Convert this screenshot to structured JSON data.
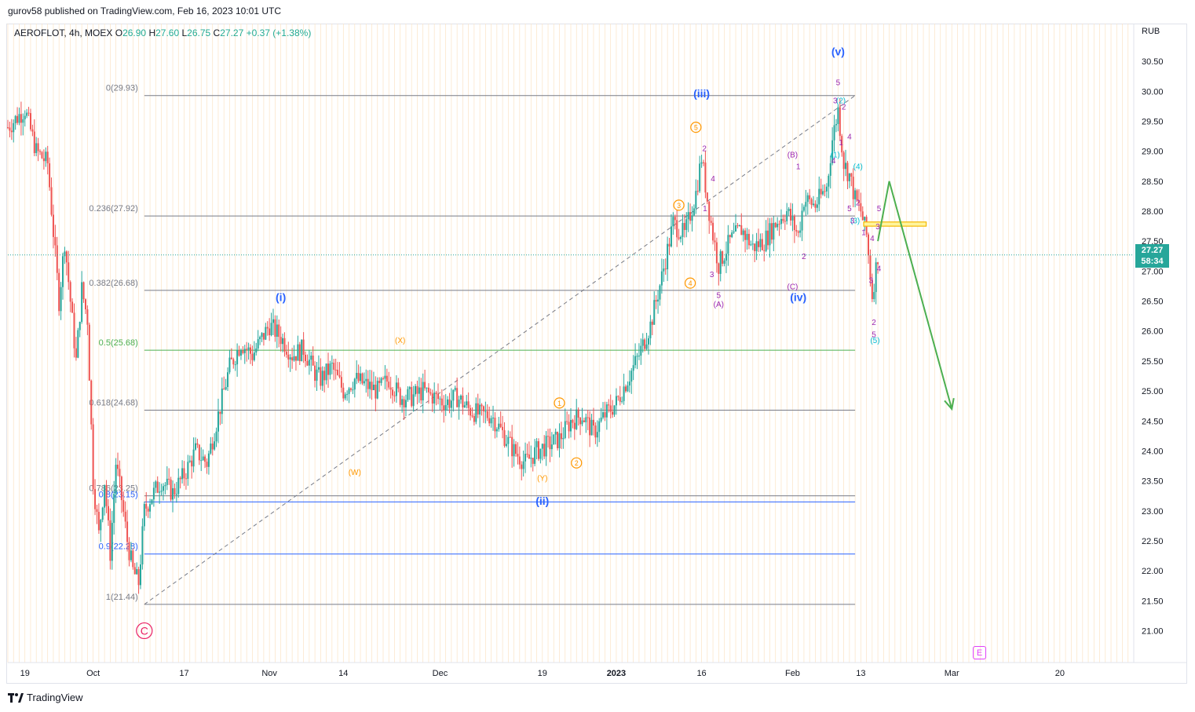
{
  "publish_line": "gurov58 published on TradingView.com, Feb 16, 2023 10:01 UTC",
  "header": {
    "symbol": "AEROFLOT, 4h, MOEX",
    "o_label": "O",
    "o_value": "26.90",
    "h_label": "H",
    "h_value": "27.60",
    "l_label": "L",
    "l_value": "26.75",
    "c_label": "C",
    "c_value": "27.27",
    "change": "+0.37 (+1.38%)"
  },
  "price_axis": {
    "currency": "RUB",
    "last_price": "27.27",
    "countdown": "58:34"
  },
  "footer": {
    "brand": "TradingView"
  },
  "events_badge": "E",
  "colors": {
    "up": "#26a69a",
    "down": "#ef5350",
    "fib_gray": "#787b86",
    "fib_green": "#4caf50",
    "fib_blue": "#2962ff",
    "wave_blue": "#2962ff",
    "wave_orange": "#ff9800",
    "wave_purple": "#9c27b0",
    "wave_cyan": "#00bcd4",
    "arrow_green": "#4caf50",
    "zone_gold": "#f5b800"
  },
  "chart_data": {
    "type": "candlestick",
    "symbol": "AEROFLOT",
    "interval": "4h",
    "exchange": "MOEX",
    "y_unit": "RUB",
    "ylim": [
      20.6,
      31.0
    ],
    "y_ticks": [
      "21.00",
      "21.50",
      "22.00",
      "22.50",
      "23.00",
      "23.50",
      "24.00",
      "24.50",
      "25.00",
      "25.50",
      "26.00",
      "26.50",
      "27.00",
      "27.50",
      "28.00",
      "28.50",
      "29.00",
      "29.50",
      "30.00",
      "30.50"
    ],
    "x_ticks": [
      "19",
      "Oct",
      "17",
      "Nov",
      "14",
      "Dec",
      "19",
      "2023",
      "16",
      "Feb",
      "13",
      "Mar",
      "20"
    ],
    "x_tick_days": [
      -12,
      0,
      16,
      31,
      44,
      61,
      79,
      92,
      107,
      123,
      135,
      151,
      170
    ],
    "xlim_days": [
      -15,
      183
    ],
    "last_candle_day": 138,
    "close_path": [
      [
        -15,
        29.4
      ],
      [
        -12,
        29.7
      ],
      [
        -10,
        29.0
      ],
      [
        -8,
        28.8
      ],
      [
        -6,
        26.5
      ],
      [
        -5,
        27.5
      ],
      [
        -3,
        25.5
      ],
      [
        -2,
        26.7
      ],
      [
        -1,
        26.2
      ],
      [
        0,
        23.5
      ],
      [
        1,
        22.6
      ],
      [
        2,
        23.5
      ],
      [
        3,
        22.3
      ],
      [
        4,
        23.8
      ],
      [
        5,
        23.2
      ],
      [
        6,
        22.5
      ],
      [
        7,
        22.0
      ],
      [
        8,
        21.8
      ],
      [
        9,
        23.0
      ],
      [
        10,
        23.2
      ],
      [
        12,
        23.5
      ],
      [
        14,
        23.3
      ],
      [
        16,
        23.6
      ],
      [
        18,
        24.0
      ],
      [
        20,
        23.8
      ],
      [
        22,
        24.6
      ],
      [
        24,
        25.4
      ],
      [
        26,
        25.8
      ],
      [
        28,
        25.6
      ],
      [
        31,
        26.1
      ],
      [
        33,
        25.9
      ],
      [
        35,
        25.6
      ],
      [
        37,
        25.7
      ],
      [
        39,
        25.3
      ],
      [
        40,
        25.2
      ],
      [
        42,
        25.4
      ],
      [
        44,
        25.0
      ],
      [
        46,
        25.2
      ],
      [
        48,
        25.1
      ],
      [
        50,
        25.0
      ],
      [
        52,
        25.2
      ],
      [
        54,
        24.9
      ],
      [
        56,
        24.9
      ],
      [
        58,
        25.0
      ],
      [
        60,
        24.9
      ],
      [
        62,
        24.8
      ],
      [
        64,
        24.9
      ],
      [
        66,
        24.7
      ],
      [
        68,
        24.6
      ],
      [
        70,
        24.6
      ],
      [
        72,
        24.3
      ],
      [
        74,
        24.0
      ],
      [
        76,
        23.8
      ],
      [
        78,
        24.0
      ],
      [
        80,
        24.1
      ],
      [
        82,
        24.2
      ],
      [
        84,
        24.5
      ],
      [
        86,
        24.6
      ],
      [
        88,
        24.3
      ],
      [
        90,
        24.6
      ],
      [
        92,
        24.8
      ],
      [
        94,
        25.2
      ],
      [
        96,
        25.6
      ],
      [
        98,
        26.1
      ],
      [
        100,
        26.9
      ],
      [
        102,
        27.8
      ],
      [
        104,
        27.6
      ],
      [
        106,
        28.3
      ],
      [
        107,
        28.9
      ],
      [
        108,
        28.2
      ],
      [
        109,
        27.6
      ],
      [
        110,
        27.1
      ],
      [
        112,
        27.5
      ],
      [
        114,
        27.7
      ],
      [
        116,
        27.4
      ],
      [
        118,
        27.5
      ],
      [
        120,
        27.8
      ],
      [
        122,
        28.0
      ],
      [
        124,
        27.6
      ],
      [
        125,
        28.2
      ],
      [
        127,
        28.1
      ],
      [
        129,
        28.4
      ],
      [
        130,
        29.2
      ],
      [
        131,
        29.7
      ],
      [
        132,
        28.8
      ],
      [
        133,
        28.6
      ],
      [
        134,
        28.2
      ],
      [
        135,
        28.0
      ],
      [
        136,
        27.6
      ],
      [
        137,
        26.6
      ],
      [
        138,
        27.27
      ]
    ],
    "fib_levels": [
      {
        "ratio": "0",
        "price": 29.93,
        "label": "0(29.93)",
        "color": "fib_gray"
      },
      {
        "ratio": "0.236",
        "price": 27.92,
        "label": "0.236(27.92)",
        "color": "fib_gray"
      },
      {
        "ratio": "0.382",
        "price": 26.68,
        "label": "0.382(26.68)",
        "color": "fib_gray"
      },
      {
        "ratio": "0.5",
        "price": 25.68,
        "label": "0.5(25.68)",
        "color": "fib_green"
      },
      {
        "ratio": "0.618",
        "price": 24.68,
        "label": "0.618(24.68)",
        "color": "fib_gray"
      },
      {
        "ratio": "0.786",
        "price": 23.25,
        "label": "0.786(23.25)",
        "color": "fib_gray"
      },
      {
        "ratio": "0.8",
        "price": 23.15,
        "label": "0.8(23.15)",
        "color": "fib_blue"
      },
      {
        "ratio": "0.9",
        "price": 22.28,
        "label": "0.9(22.28)",
        "color": "fib_blue"
      },
      {
        "ratio": "1",
        "price": 21.44,
        "label": "1(21.44)",
        "color": "fib_gray"
      }
    ],
    "fib_x_range_days": [
      9,
      134
    ],
    "trend_line": {
      "from": [
        9,
        21.44
      ],
      "to": [
        134,
        29.93
      ]
    },
    "target_zone": {
      "x_days": [
        135.5,
        146.5
      ],
      "price_range": [
        27.75,
        27.82
      ]
    },
    "projection_arrow": [
      [
        138,
        27.5
      ],
      [
        140,
        28.5
      ],
      [
        151,
        24.7
      ]
    ],
    "wave_labels": [
      {
        "text": "C",
        "day": 9,
        "price": 21.0,
        "color": "#e91e63",
        "circled": true
      },
      {
        "text": "(i)",
        "day": 33,
        "price": 26.5,
        "color": "wave_blue"
      },
      {
        "text": "(W)",
        "day": 46,
        "price": 23.6,
        "color": "wave_orange"
      },
      {
        "text": "(X)",
        "day": 54,
        "price": 25.8,
        "color": "wave_orange"
      },
      {
        "text": "(Y)",
        "day": 79,
        "price": 23.5,
        "color": "wave_orange"
      },
      {
        "text": "(ii)",
        "day": 79,
        "price": 23.1,
        "color": "wave_blue"
      },
      {
        "text": "1",
        "day": 82,
        "price": 24.8,
        "color": "wave_orange",
        "circled": true
      },
      {
        "text": "2",
        "day": 85,
        "price": 23.8,
        "color": "wave_orange",
        "circled": true
      },
      {
        "text": "3",
        "day": 103,
        "price": 28.1,
        "color": "wave_orange",
        "circled": true
      },
      {
        "text": "4",
        "day": 105,
        "price": 26.8,
        "color": "wave_orange",
        "circled": true
      },
      {
        "text": "5",
        "day": 106,
        "price": 29.4,
        "color": "wave_orange",
        "circled": true
      },
      {
        "text": "(iii)",
        "day": 107,
        "price": 29.9,
        "color": "wave_blue"
      },
      {
        "text": "(A)",
        "day": 110,
        "price": 26.4,
        "color": "wave_purple"
      },
      {
        "text": "(B)",
        "day": 123,
        "price": 28.9,
        "color": "wave_purple"
      },
      {
        "text": "(C)",
        "day": 123,
        "price": 26.7,
        "color": "wave_purple"
      },
      {
        "text": "(iv)",
        "day": 124,
        "price": 26.5,
        "color": "wave_blue"
      },
      {
        "text": "(v)",
        "day": 131,
        "price": 30.6,
        "color": "wave_blue"
      },
      {
        "text": "(1)",
        "day": 130.5,
        "price": 28.9,
        "color": "wave_cyan"
      },
      {
        "text": "(2)",
        "day": 131.5,
        "price": 29.8,
        "color": "wave_cyan"
      },
      {
        "text": "(3)",
        "day": 134,
        "price": 27.8,
        "color": "wave_cyan"
      },
      {
        "text": "(4)",
        "day": 134.5,
        "price": 28.7,
        "color": "wave_cyan"
      },
      {
        "text": "(5)",
        "day": 137.5,
        "price": 25.8,
        "color": "wave_cyan"
      },
      {
        "text": "5",
        "day": 131,
        "price": 30.1,
        "color": "wave_purple"
      },
      {
        "text": "3",
        "day": 130.5,
        "price": 29.8,
        "color": "wave_purple"
      },
      {
        "text": "2",
        "day": 132,
        "price": 29.7,
        "color": "wave_purple"
      },
      {
        "text": "1",
        "day": 131.5,
        "price": 29.1,
        "color": "wave_purple"
      },
      {
        "text": "4",
        "day": 130.2,
        "price": 28.8,
        "color": "wave_purple"
      },
      {
        "text": "4",
        "day": 133,
        "price": 29.2,
        "color": "wave_purple"
      },
      {
        "text": "5",
        "day": 133,
        "price": 28.0,
        "color": "wave_purple"
      },
      {
        "text": "2",
        "day": 134.5,
        "price": 28.1,
        "color": "wave_purple"
      },
      {
        "text": "3",
        "day": 133.5,
        "price": 27.8,
        "color": "wave_purple"
      },
      {
        "text": "1",
        "day": 135.5,
        "price": 27.6,
        "color": "wave_purple"
      },
      {
        "text": "4",
        "day": 137,
        "price": 27.5,
        "color": "wave_purple"
      },
      {
        "text": "3",
        "day": 136.8,
        "price": 26.8,
        "color": "wave_purple"
      },
      {
        "text": "2",
        "day": 137.3,
        "price": 26.1,
        "color": "wave_purple"
      },
      {
        "text": "5",
        "day": 137.3,
        "price": 25.9,
        "color": "wave_purple"
      },
      {
        "text": "5",
        "day": 138.2,
        "price": 28.0,
        "color": "wave_purple"
      },
      {
        "text": "3",
        "day": 138,
        "price": 27.7,
        "color": "wave_purple"
      },
      {
        "text": "4",
        "day": 138.2,
        "price": 27.0,
        "color": "wave_purple"
      },
      {
        "text": "2",
        "day": 107.5,
        "price": 29.0,
        "color": "wave_purple"
      },
      {
        "text": "4",
        "day": 109,
        "price": 28.5,
        "color": "wave_purple"
      },
      {
        "text": "1",
        "day": 107.6,
        "price": 28.0,
        "color": "wave_purple"
      },
      {
        "text": "3",
        "day": 108.8,
        "price": 26.9,
        "color": "wave_purple"
      },
      {
        "text": "5",
        "day": 110,
        "price": 26.55,
        "color": "wave_purple"
      },
      {
        "text": "1",
        "day": 124,
        "price": 28.7,
        "color": "wave_purple"
      },
      {
        "text": "2",
        "day": 125,
        "price": 27.2,
        "color": "wave_purple"
      }
    ]
  }
}
